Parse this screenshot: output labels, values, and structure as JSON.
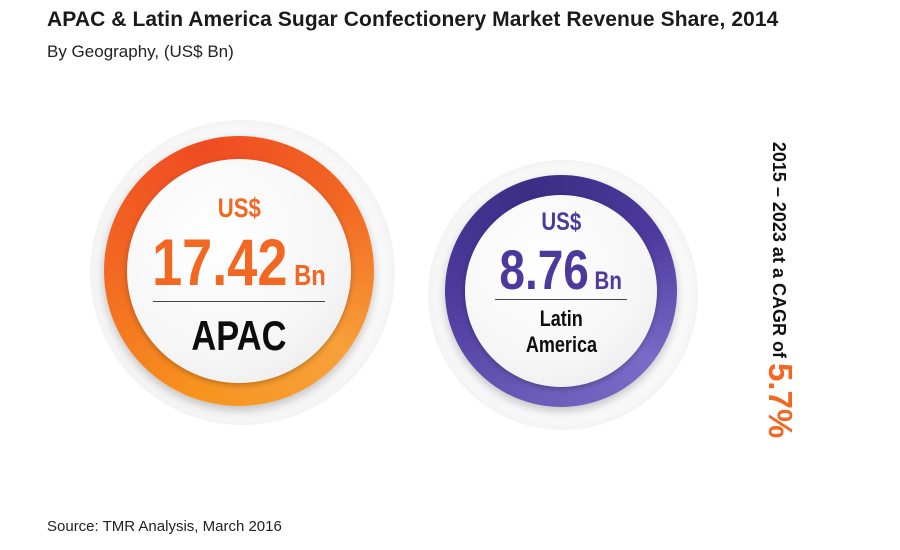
{
  "title": "APAC & Latin America Sugar Confectionery Market Revenue Share, 2014",
  "subtitle": "By Geography, (US$ Bn)",
  "source": "Source: TMR Analysis, March 2016",
  "cagr": {
    "prefix": "2015 – 2023 at a CAGR of ",
    "value": "5.7%"
  },
  "colors": {
    "apac_accent": "#f26722",
    "latam_accent": "#4b3a9c"
  },
  "chart_data": {
    "type": "bubble",
    "title": "APAC & Latin America Sugar Confectionery Market Revenue Share, 2014",
    "subtitle": "By Geography, (US$ Bn)",
    "unit": "US$ Bn",
    "categories": [
      "APAC",
      "Latin America"
    ],
    "values": [
      17.42,
      8.76
    ],
    "bubbles": [
      {
        "currency": "US$",
        "value": "17.42",
        "unit": "Bn",
        "label": "APAC"
      },
      {
        "currency": "US$",
        "value": "8.76",
        "unit": "Bn",
        "label_line1": "Latin",
        "label_line2": "America"
      }
    ]
  }
}
